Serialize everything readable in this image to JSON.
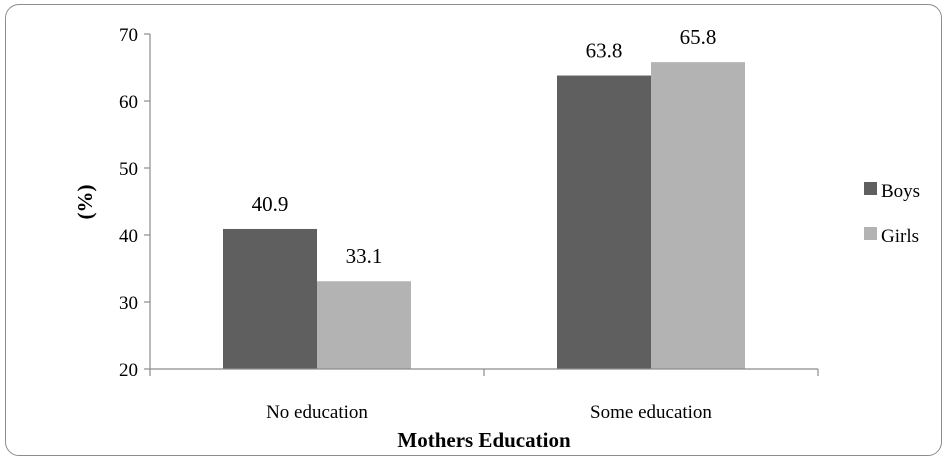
{
  "chart_data": {
    "type": "bar",
    "categories": [
      "No education",
      "Some education"
    ],
    "series": [
      {
        "name": "Boys",
        "values": [
          40.9,
          63.8
        ],
        "color": "#5f5f5f"
      },
      {
        "name": "Girls",
        "values": [
          33.1,
          65.8
        ],
        "color": "#b3b3b3"
      }
    ],
    "data_labels": [
      [
        "40.9",
        "63.8"
      ],
      [
        "33.1",
        "65.8"
      ]
    ],
    "xlabel": "Mothers Education",
    "ylabel": "(%)",
    "ylim": [
      20,
      70
    ],
    "yticks": [
      "20",
      "30",
      "40",
      "50",
      "60",
      "70"
    ],
    "grid": false,
    "legend_position": "right"
  }
}
